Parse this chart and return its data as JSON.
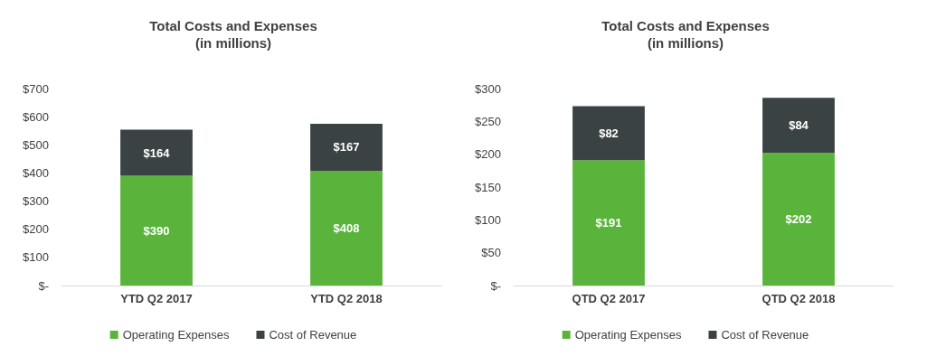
{
  "chart_data": [
    {
      "type": "bar",
      "title": "Total Costs and Expenses",
      "subtitle": "(in millions)",
      "categories": [
        "YTD Q2 2017",
        "YTD Q2 2018"
      ],
      "stacked": true,
      "series": [
        {
          "name": "Operating Expenses",
          "color": "#5ab43c",
          "values": [
            390,
            408
          ],
          "value_labels": [
            "$390",
            "$408"
          ]
        },
        {
          "name": "Cost of Revenue",
          "color": "#3b4244",
          "values": [
            164,
            167
          ],
          "value_labels": [
            "$164",
            "$167"
          ]
        }
      ],
      "ylim": [
        0,
        700
      ],
      "yticks": [
        {
          "value": 0,
          "label": "$-"
        },
        {
          "value": 100,
          "label": "$100"
        },
        {
          "value": 200,
          "label": "$200"
        },
        {
          "value": 300,
          "label": "$300"
        },
        {
          "value": 400,
          "label": "$400"
        },
        {
          "value": 500,
          "label": "$500"
        },
        {
          "value": 600,
          "label": "$600"
        },
        {
          "value": 700,
          "label": "$700"
        }
      ],
      "grid": false,
      "legend": "bottom"
    },
    {
      "type": "bar",
      "title": "Total Costs and Expenses",
      "subtitle": "(in millions)",
      "categories": [
        "QTD Q2 2017",
        "QTD Q2 2018"
      ],
      "stacked": true,
      "series": [
        {
          "name": "Operating Expenses",
          "color": "#5ab43c",
          "values": [
            191,
            202
          ],
          "value_labels": [
            "$191",
            "$202"
          ]
        },
        {
          "name": "Cost of Revenue",
          "color": "#3b4244",
          "values": [
            82,
            84
          ],
          "value_labels": [
            "$82",
            "$84"
          ]
        }
      ],
      "ylim": [
        0,
        300
      ],
      "yticks": [
        {
          "value": 0,
          "label": "$-"
        },
        {
          "value": 50,
          "label": "$50"
        },
        {
          "value": 100,
          "label": "$100"
        },
        {
          "value": 150,
          "label": "$150"
        },
        {
          "value": 200,
          "label": "$200"
        },
        {
          "value": 250,
          "label": "$250"
        },
        {
          "value": 300,
          "label": "$300"
        }
      ],
      "grid": false,
      "legend": "bottom"
    }
  ]
}
